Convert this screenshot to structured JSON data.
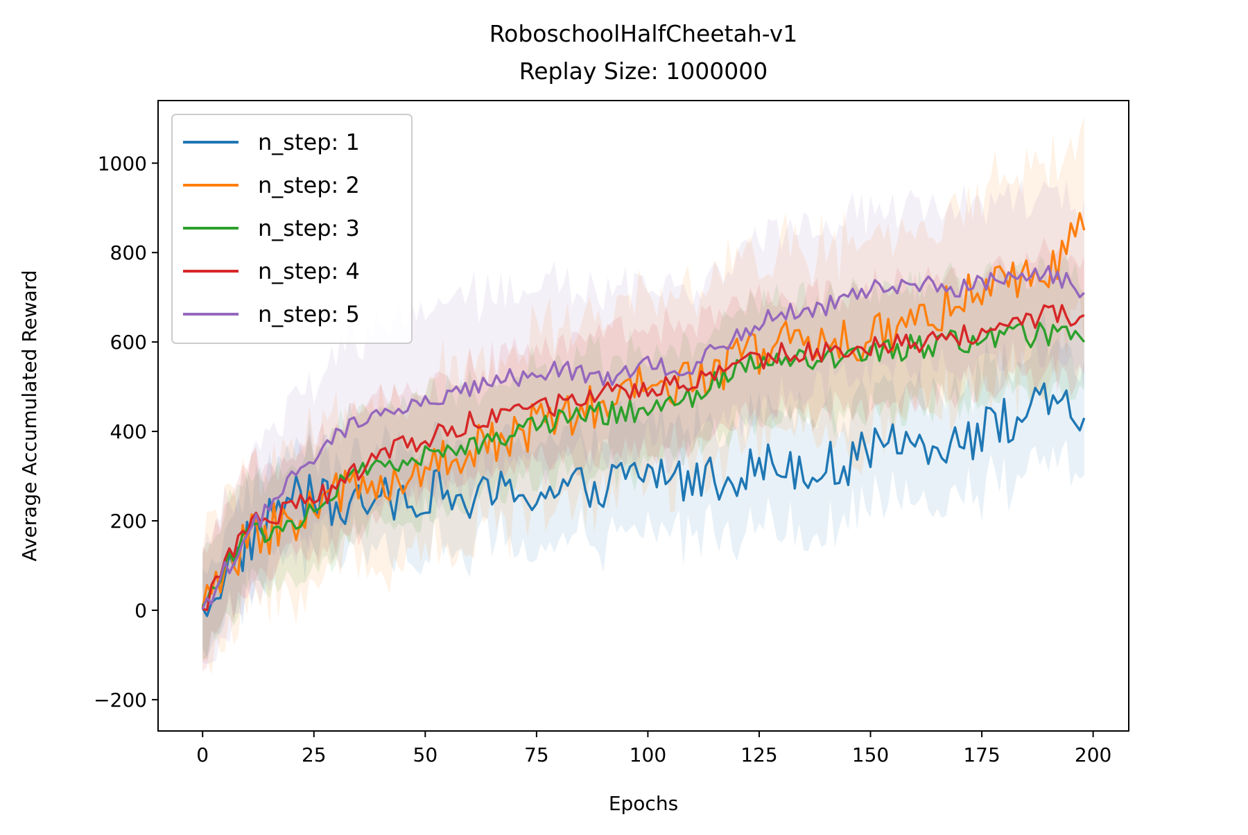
{
  "chart_data": {
    "type": "line",
    "title": "RoboschoolHalfCheetah-v1",
    "subtitle": "Replay Size: 1000000",
    "xlabel": "Epochs",
    "ylabel": "Average Accumulated Reward",
    "xlim": [
      -10,
      208
    ],
    "ylim": [
      -270,
      1140
    ],
    "xticks": [
      0,
      25,
      50,
      75,
      100,
      125,
      150,
      175,
      200
    ],
    "yticks": [
      -200,
      0,
      200,
      400,
      600,
      800,
      1000
    ],
    "xtick_labels": [
      "0",
      "25",
      "50",
      "75",
      "100",
      "125",
      "150",
      "175",
      "200"
    ],
    "ytick_labels": [
      "−200",
      "0",
      "200",
      "400",
      "600",
      "800",
      "1000"
    ],
    "grid": false,
    "legend_position": "upper-left",
    "shaded_band": "standard deviation band around each series",
    "x": [
      0,
      10,
      20,
      30,
      40,
      50,
      60,
      70,
      80,
      90,
      100,
      110,
      120,
      130,
      140,
      150,
      160,
      170,
      180,
      190,
      198
    ],
    "series": [
      {
        "name": "n_step: 1",
        "color": "#1f77b4",
        "values": [
          5,
          150,
          260,
          230,
          240,
          270,
          240,
          270,
          260,
          280,
          310,
          290,
          310,
          330,
          320,
          350,
          380,
          380,
          420,
          460,
          430
        ],
        "band": [
          80,
          110,
          110,
          110,
          110,
          120,
          110,
          110,
          110,
          120,
          120,
          120,
          120,
          120,
          130,
          130,
          130,
          130,
          130,
          130,
          130
        ],
        "noise": 55
      },
      {
        "name": "n_step: 2",
        "color": "#ff7f0e",
        "values": [
          5,
          160,
          200,
          260,
          290,
          320,
          360,
          400,
          420,
          460,
          500,
          520,
          560,
          600,
          590,
          600,
          650,
          700,
          720,
          760,
          850
        ],
        "band": [
          150,
          150,
          160,
          170,
          180,
          190,
          190,
          190,
          200,
          200,
          200,
          200,
          200,
          200,
          210,
          210,
          210,
          210,
          220,
          220,
          220
        ],
        "noise": 55
      },
      {
        "name": "n_step: 3",
        "color": "#2ca02c",
        "values": [
          10,
          170,
          190,
          270,
          330,
          340,
          370,
          400,
          430,
          440,
          450,
          470,
          540,
          560,
          560,
          570,
          590,
          600,
          610,
          620,
          600
        ],
        "band": [
          120,
          120,
          130,
          130,
          130,
          130,
          130,
          130,
          130,
          130,
          130,
          130,
          130,
          130,
          130,
          130,
          130,
          130,
          130,
          130,
          130
        ],
        "noise": 28
      },
      {
        "name": "n_step: 4",
        "color": "#d62728",
        "values": [
          3,
          190,
          230,
          270,
          360,
          380,
          420,
          440,
          460,
          490,
          500,
          510,
          540,
          580,
          580,
          590,
          600,
          610,
          640,
          660,
          660
        ],
        "band": [
          120,
          120,
          120,
          120,
          120,
          120,
          120,
          130,
          130,
          130,
          130,
          130,
          130,
          130,
          130,
          130,
          130,
          130,
          130,
          130,
          130
        ],
        "noise": 24
      },
      {
        "name": "n_step: 5",
        "color": "#9467bd",
        "values": [
          3,
          170,
          290,
          390,
          440,
          460,
          490,
          520,
          540,
          520,
          550,
          540,
          620,
          670,
          680,
          720,
          730,
          720,
          740,
          760,
          710
        ],
        "band": [
          140,
          150,
          160,
          180,
          200,
          200,
          200,
          200,
          190,
          180,
          180,
          180,
          180,
          180,
          180,
          180,
          180,
          180,
          180,
          180,
          180
        ],
        "noise": 22
      }
    ]
  }
}
